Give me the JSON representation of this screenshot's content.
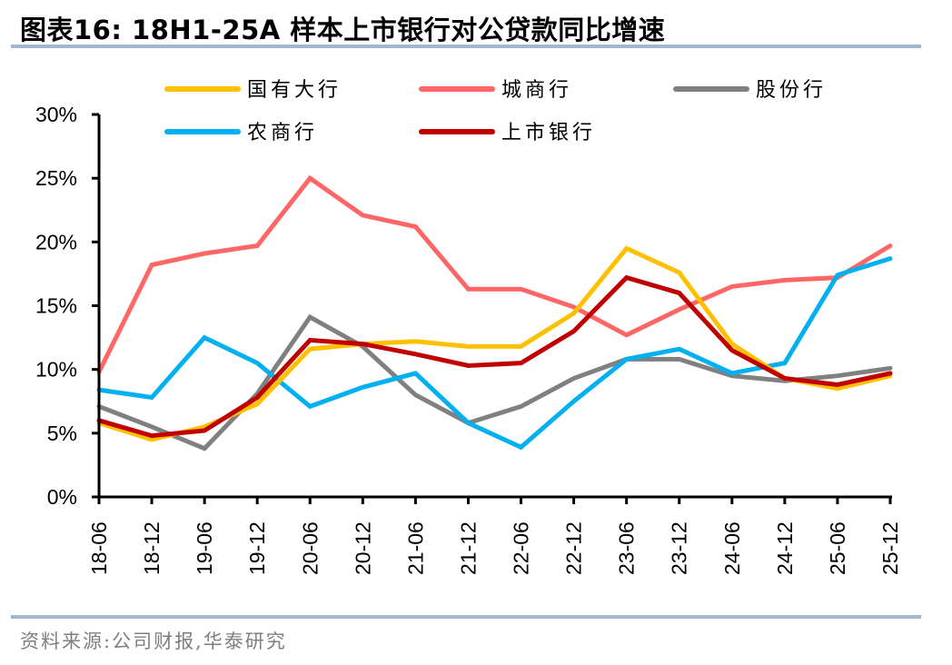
{
  "header": {
    "title": "图表16:  18H1-25A 样本上市银行对公贷款同比增速"
  },
  "footer": {
    "source": "资料来源:公司财报,华泰研究"
  },
  "chart_data": {
    "type": "line",
    "title": "18H1-25A 样本上市银行对公贷款同比增速",
    "xlabel": "",
    "ylabel": "",
    "ylim": [
      0,
      30
    ],
    "yticks": [
      "0%",
      "5%",
      "10%",
      "15%",
      "20%",
      "25%",
      "30%"
    ],
    "ytick_values": [
      0,
      5,
      10,
      15,
      20,
      25,
      30
    ],
    "grid": false,
    "legend_position": "top",
    "categories": [
      "18-06",
      "18-12",
      "19-06",
      "19-12",
      "20-06",
      "20-12",
      "21-06",
      "21-12",
      "22-06",
      "22-12",
      "23-06",
      "23-12",
      "24-06",
      "24-12",
      "25-06",
      "25-12"
    ],
    "series": [
      {
        "name": "国有大行",
        "color": "#ffc000",
        "values": [
          5.8,
          4.5,
          5.5,
          7.3,
          11.6,
          12.0,
          12.2,
          11.8,
          11.8,
          14.4,
          19.5,
          17.6,
          12.0,
          9.3,
          8.5,
          9.5
        ]
      },
      {
        "name": "城商行",
        "color": "#ff6666",
        "values": [
          9.8,
          18.2,
          19.1,
          19.7,
          25.0,
          22.1,
          21.2,
          16.3,
          16.3,
          14.9,
          12.7,
          14.7,
          16.5,
          17.0,
          17.2,
          19.7
        ]
      },
      {
        "name": "股份行",
        "color": "#808080",
        "values": [
          7.1,
          5.5,
          3.8,
          8.1,
          14.1,
          11.8,
          8.0,
          5.8,
          7.1,
          9.3,
          10.8,
          10.8,
          9.5,
          9.1,
          9.5,
          10.1
        ]
      },
      {
        "name": "农商行",
        "color": "#00b0f0",
        "values": [
          8.4,
          7.8,
          12.5,
          10.5,
          7.1,
          8.6,
          9.7,
          5.8,
          3.9,
          7.5,
          10.8,
          11.6,
          9.7,
          10.5,
          17.4,
          18.7
        ]
      },
      {
        "name": "上市银行",
        "color": "#c00000",
        "values": [
          6.0,
          4.8,
          5.2,
          7.8,
          12.3,
          12.0,
          11.2,
          10.3,
          10.5,
          13.0,
          17.2,
          16.0,
          11.5,
          9.3,
          8.8,
          9.7
        ]
      }
    ]
  }
}
